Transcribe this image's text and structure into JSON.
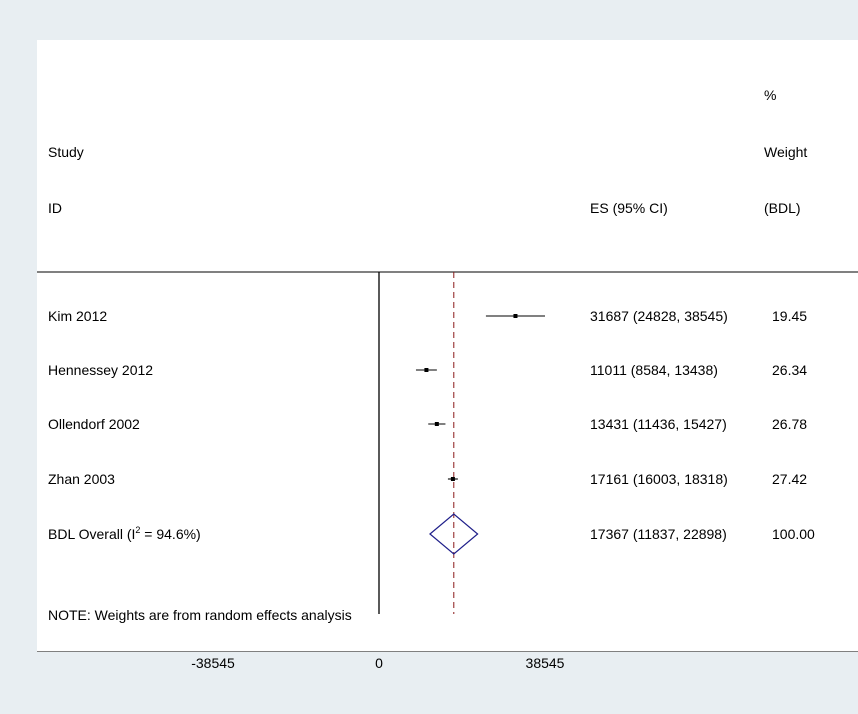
{
  "chart_data": {
    "type": "forest",
    "headers": {
      "study_line1": "Study",
      "study_line2": "ID",
      "es": "ES (95% CI)",
      "weight_line1": "%",
      "weight_line2": "Weight",
      "weight_line3": "(BDL)"
    },
    "studies": [
      {
        "label": "Kim 2012",
        "es": 31687,
        "lo": 24828,
        "hi": 38545,
        "es_text": "31687 (24828, 38545)",
        "weight": "19.45"
      },
      {
        "label": "Hennessey 2012",
        "es": 11011,
        "lo": 8584,
        "hi": 13438,
        "es_text": "11011 (8584, 13438)",
        "weight": "26.34"
      },
      {
        "label": "Ollendorf 2002",
        "es": 13431,
        "lo": 11436,
        "hi": 15427,
        "es_text": "13431 (11436, 15427)",
        "weight": "26.78"
      },
      {
        "label": "Zhan 2003",
        "es": 17161,
        "lo": 16003,
        "hi": 18318,
        "es_text": "17161 (16003, 18318)",
        "weight": "27.42"
      }
    ],
    "overall": {
      "label_prefix": "BDL Overall  (I",
      "label_sup": "2",
      "label_suffix": " = 94.6%)",
      "es": 17367,
      "lo": 11837,
      "hi": 22898,
      "es_text": "17367 (11837, 22898)",
      "weight": "100.00"
    },
    "note": "NOTE: Weights are from random effects analysis",
    "x_ticks": [
      {
        "value": -38545,
        "label": "-38545"
      },
      {
        "value": 0,
        "label": "0"
      },
      {
        "value": 38545,
        "label": "38545"
      }
    ],
    "null_line": 0,
    "colors": {
      "page_background": "#e8eef2",
      "panel_background": "#ffffff",
      "axis": "#000000",
      "ci_line": "#000000",
      "overall_line": "#8b1a1a",
      "diamond": "#1f1f8a"
    }
  }
}
